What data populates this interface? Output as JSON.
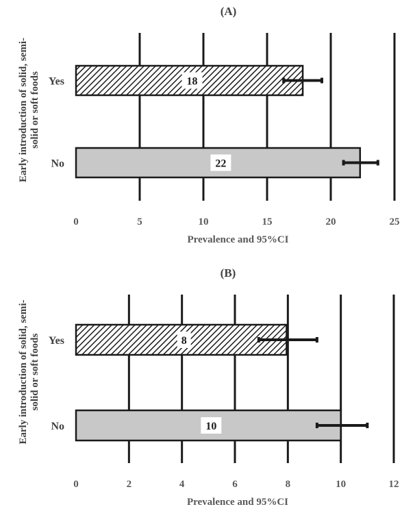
{
  "chart_data": [
    {
      "type": "bar",
      "orientation": "horizontal",
      "title": "(A)",
      "xlabel": "Prevalence and 95%CI",
      "ylabel": "Early introduction of solid, semi-solid or soft foods",
      "ylabel_lines": [
        "Early introduction of solid, semi-",
        "solid or soft foods"
      ],
      "categories": [
        "Yes",
        "No"
      ],
      "values": [
        18,
        22
      ],
      "estimates": [
        17.8,
        22.3
      ],
      "ci": [
        [
          16.3,
          19.3
        ],
        [
          21.0,
          23.7
        ]
      ],
      "data_labels": [
        "18",
        "22"
      ],
      "fills": [
        "hatch",
        "#c8c8c8"
      ],
      "xlim": [
        0,
        25
      ],
      "xticks": [
        0,
        5,
        10,
        15,
        20,
        25
      ],
      "grid": true
    },
    {
      "type": "bar",
      "orientation": "horizontal",
      "title": "(B)",
      "xlabel": "Prevalence and 95%CI",
      "ylabel": "Early introduction of solid, semi-solid or soft foods",
      "ylabel_lines": [
        "Early introduction of solid, semi-",
        "solid or soft foods"
      ],
      "categories": [
        "Yes",
        "No"
      ],
      "values": [
        8,
        10
      ],
      "estimates": [
        7.95,
        10.0
      ],
      "ci": [
        [
          6.9,
          9.1
        ],
        [
          9.1,
          11.0
        ]
      ],
      "data_labels": [
        "8",
        "10"
      ],
      "fills": [
        "hatch",
        "#c8c8c8"
      ],
      "xlim": [
        0,
        12
      ],
      "xticks": [
        0,
        2,
        4,
        6,
        8,
        10,
        12
      ],
      "grid": true
    }
  ]
}
